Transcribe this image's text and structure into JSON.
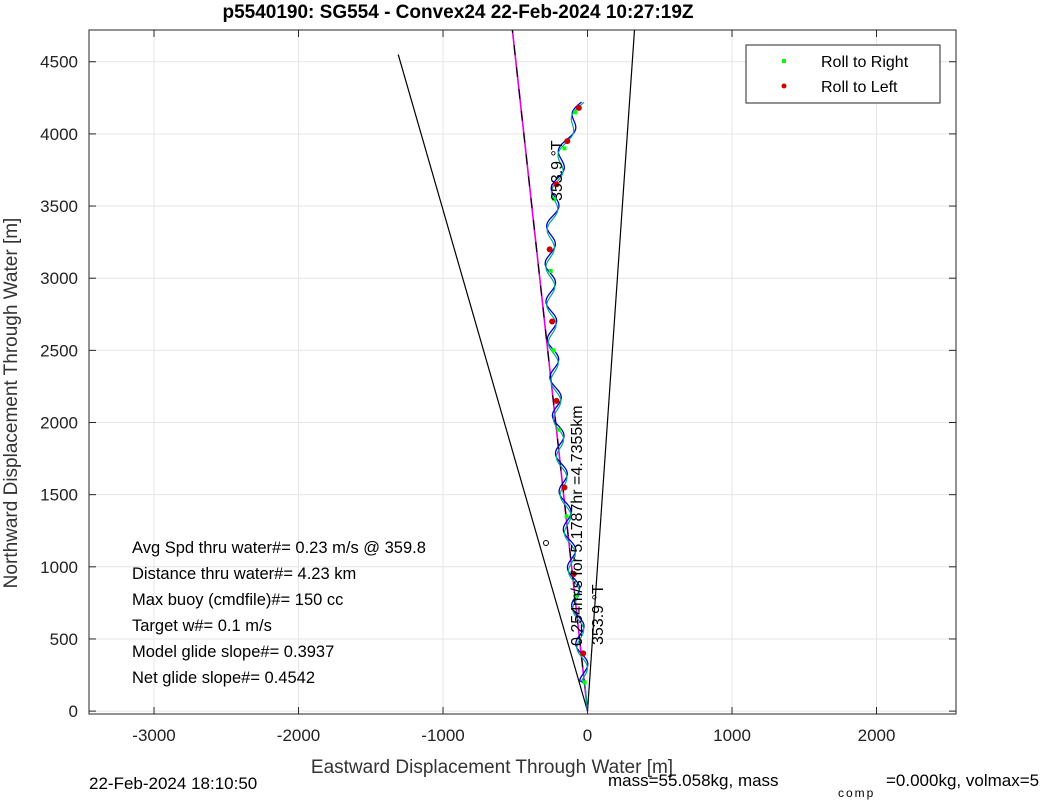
{
  "chart_data": {
    "type": "line",
    "title": "p5540190: SG554 - Convex24 22-Feb-2024 10:27:19Z",
    "xlabel": "Eastward Displacement Through Water [m]",
    "ylabel": "Northward Displacement Through Water [m]",
    "xlim": [
      -3450,
      2550
    ],
    "ylim": [
      -20,
      4720
    ],
    "xticks": [
      -3000,
      -2000,
      -1000,
      0,
      1000,
      2000
    ],
    "yticks": [
      0,
      500,
      1000,
      1500,
      2000,
      2500,
      3000,
      3500,
      4000,
      4500
    ],
    "grid": true,
    "legend": {
      "placement": "top-right",
      "entries": [
        {
          "label": "Roll to Right",
          "color": "#00ff00"
        },
        {
          "label": "Roll to Left",
          "color": "#cc0000"
        }
      ]
    },
    "series": [
      {
        "x": [
          0,
          -30,
          -60,
          -95,
          -120,
          -150,
          -180,
          -205,
          -225,
          -245,
          -255,
          -260,
          -245,
          -220,
          -190,
          -150,
          -110,
          -70,
          -40
        ],
        "y": [
          0,
          300,
          600,
          900,
          1150,
          1400,
          1700,
          2000,
          2300,
          2600,
          2900,
          3200,
          3400,
          3600,
          3800,
          3950,
          4050,
          4150,
          4220
        ]
      },
      {
        "x": [
          0,
          -520
        ],
        "y": [
          0,
          4720
        ]
      },
      {
        "x": [
          0,
          -1310
        ],
        "y": [
          0,
          4550
        ]
      },
      {
        "x": [
          0,
          325
        ],
        "y": [
          0,
          4720
        ]
      }
    ],
    "markers": {
      "roll_right": {
        "x": [
          -20,
          -80,
          -145,
          -200,
          -235,
          -255,
          -230,
          -160,
          -85
        ],
        "y": [
          200,
          800,
          1350,
          1950,
          2500,
          3050,
          3550,
          3900,
          4150
        ]
      },
      "roll_left": {
        "x": [
          -30,
          -95,
          -160,
          -215,
          -245,
          -262,
          -215,
          -140,
          -60
        ],
        "y": [
          400,
          950,
          1550,
          2150,
          2700,
          3200,
          3650,
          3950,
          4180
        ]
      }
    },
    "annotations": {
      "heading_upper": "353.9  °T",
      "heading_lower": "353.9  °T",
      "current": "0.254m/s for 5.1787hr =4.7355km"
    },
    "stats": [
      "Avg Spd thru water#=  0.23 m/s @ 359.8",
      "Distance thru water#=  4.23 km",
      "Max buoy (cmdfile)#= 150 cc",
      "Target w#= 0.1 m/s",
      "Model glide slope#= 0.3937",
      "Net glide slope#= 0.4542"
    ],
    "footer": {
      "timestamp": "22-Feb-2024 18:10:50",
      "mass": "mass=55.058kg, mass",
      "mass_sub": "comp",
      "mass_rest": "=0.000kg, volmax=5"
    }
  }
}
